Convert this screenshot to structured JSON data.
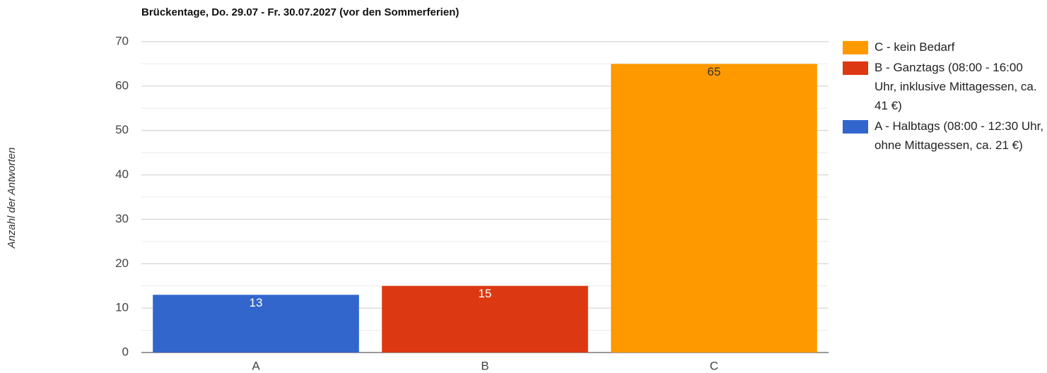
{
  "chart_data": {
    "type": "stacked_bar",
    "title": "Brückentage, Do. 29.07 - Fr. 30.07.2027 (vor den Sommerferien)",
    "y_label": "Anzahl der Antworten",
    "categories": [
      "A",
      "B",
      "C"
    ],
    "series": [
      {
        "name": "C - kein Bedarf",
        "color": "#ff9900",
        "values": [
          0,
          0,
          65
        ]
      },
      {
        "name": "B - Ganztags (08:00 - 16:00 Uhr, inklusive Mittagessen, ca. 41 €)",
        "color": "#dc3912",
        "values": [
          0,
          15,
          0
        ]
      },
      {
        "name": "A - Halbtags (08:00 - 12:30 Uhr, ohne Mittagessen, ca. 21 €)",
        "color": "#3366cc",
        "values": [
          13,
          0,
          0
        ]
      }
    ],
    "ylim": [
      0,
      70
    ],
    "yticks": [
      0,
      10,
      20,
      30,
      40,
      50,
      60,
      70
    ],
    "minor_yticks": [
      5,
      15,
      25,
      35,
      45,
      55,
      65
    ],
    "grid": true,
    "legend": "right"
  }
}
